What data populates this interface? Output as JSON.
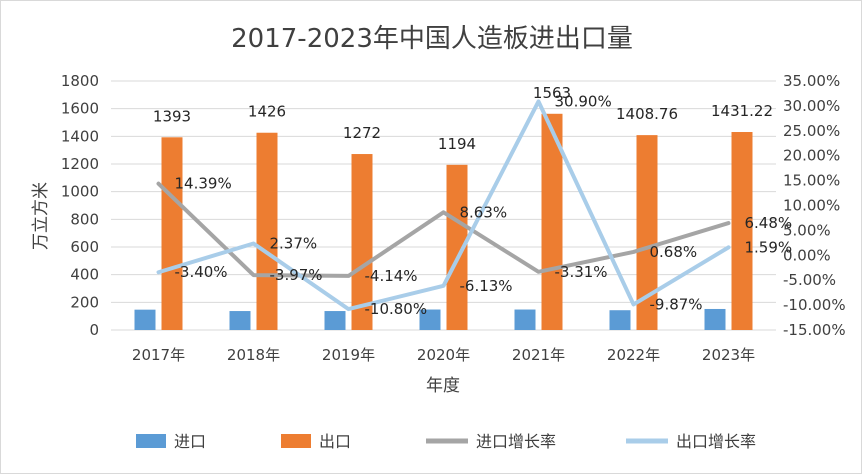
{
  "chart_data": {
    "type": "bar",
    "title": "2017-2023年中国人造板进出口量",
    "xlabel": "年度",
    "ylabel": "万立方米",
    "categories": [
      "2017年",
      "2018年",
      "2019年",
      "2020年",
      "2021年",
      "2022年",
      "2023年"
    ],
    "ylim": [
      0,
      1800
    ],
    "y_ticks": [
      0,
      200,
      400,
      600,
      800,
      1000,
      1200,
      1400,
      1600,
      1800
    ],
    "y2lim": [
      -15,
      35
    ],
    "y2_ticks": [
      -15,
      -10,
      -5,
      0,
      5,
      10,
      15,
      20,
      25,
      30,
      35
    ],
    "y2_tick_labels": [
      "-15.00%",
      "-10.00%",
      "-5.00%",
      "0.00%",
      "5.00%",
      "10.00%",
      "15.00%",
      "20.00%",
      "25.00%",
      "30.00%",
      "35.00%"
    ],
    "grid": true,
    "legend_position": "bottom",
    "series": [
      {
        "name": "进口",
        "type": "bar",
        "axis": "left",
        "color": "#5b9bd5",
        "values": [
          147,
          137,
          137,
          148,
          148,
          143,
          152
        ]
      },
      {
        "name": "出口",
        "type": "bar",
        "axis": "left",
        "color": "#ed7d31",
        "values": [
          1393,
          1426,
          1272,
          1194,
          1563,
          1408.76,
          1431.22
        ],
        "labels": [
          "1393",
          "1426",
          "1272",
          "1194",
          "1563",
          "1408.76",
          "1431.22"
        ]
      },
      {
        "name": "进口增长率",
        "type": "line",
        "axis": "right",
        "color": "#a5a5a5",
        "values": [
          14.39,
          -3.97,
          -4.14,
          8.63,
          -3.31,
          0.68,
          6.48
        ],
        "labels": [
          "14.39%",
          "-3.97%",
          "-4.14%",
          "8.63%",
          "-3.31%",
          "0.68%",
          "6.48%"
        ]
      },
      {
        "name": "出口增长率",
        "type": "line",
        "axis": "right",
        "color": "#a9cde9",
        "values": [
          -3.4,
          2.37,
          -10.8,
          -6.13,
          30.9,
          -9.87,
          1.59
        ],
        "labels": [
          "-3.40%",
          "2.37%",
          "-10.80%",
          "-6.13%",
          "30.90%",
          "-9.87%",
          "1.59%"
        ]
      }
    ]
  }
}
